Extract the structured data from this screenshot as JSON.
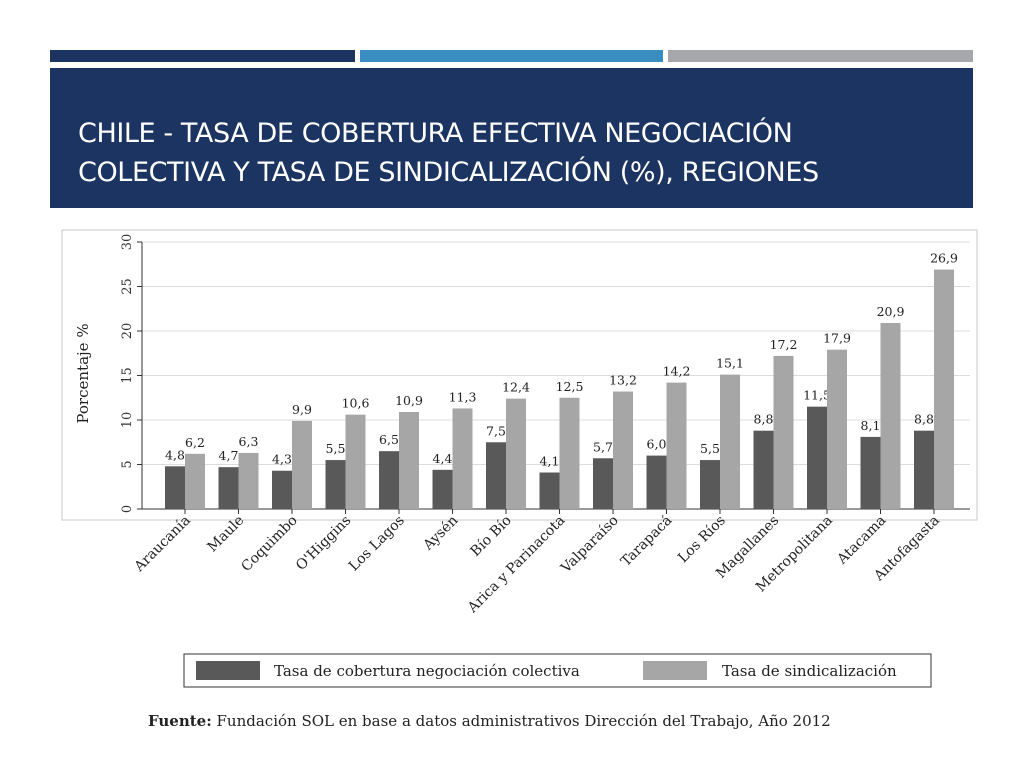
{
  "slide": {
    "title_line1": "CHILE - TASA DE COBERTURA EFECTIVA NEGOCIACIÓN",
    "title_line2": "COLECTIVA Y TASA DE SINDICALIZACIÓN (%), REGIONES",
    "source_label": "Fuente:",
    "source_text": " Fundación SOL en base a datos administrativos Dirección del Trabajo, Año 2012"
  },
  "colors": {
    "title_bg": "#1c3461",
    "accent_1": "#1c3461",
    "accent_2": "#3a8dc0",
    "accent_3": "#a5a7aa",
    "series_dark": "#595959",
    "series_light": "#a6a6a6"
  },
  "chart_data": {
    "type": "bar",
    "title": "",
    "xlabel": "",
    "ylabel": "Porcentaje %",
    "ylim": [
      0,
      30
    ],
    "yticks": [
      0,
      5,
      10,
      15,
      20,
      25,
      30
    ],
    "grid": true,
    "legend_position": "bottom",
    "categories": [
      "Araucanía",
      "Maule",
      "Coquimbo",
      "O'Higgins",
      "Los Lagos",
      "Aysén",
      "Bío Bío",
      "Arica y Parinacota",
      "Valparaíso",
      "Tarapacá",
      "Los Ríos",
      "Magallanes",
      "Metropolitana",
      "Atacama",
      "Antofagasta"
    ],
    "series": [
      {
        "name": "Tasa de cobertura negociación colectiva",
        "values": [
          4.8,
          4.7,
          4.3,
          5.5,
          6.5,
          4.4,
          7.5,
          4.1,
          5.7,
          6.0,
          5.5,
          8.8,
          11.5,
          8.1,
          8.8
        ],
        "labels": [
          "4,8",
          "4,7",
          "4,3",
          "5,5",
          "6,5",
          "4,4",
          "7,5",
          "4,1",
          "5,7",
          "6,0",
          "5,5",
          "8,8",
          "11,5",
          "8,1",
          "8,8"
        ]
      },
      {
        "name": "Tasa de sindicalización",
        "values": [
          6.2,
          6.3,
          9.9,
          10.6,
          10.9,
          11.3,
          12.4,
          12.5,
          13.2,
          14.2,
          15.1,
          17.2,
          17.9,
          20.9,
          26.9
        ],
        "labels": [
          "6,2",
          "6,3",
          "9,9",
          "10,6",
          "10,9",
          "11,3",
          "12,4",
          "12,5",
          "13,2",
          "14,2",
          "15,1",
          "17,2",
          "17,9",
          "20,9",
          "26,9"
        ]
      }
    ]
  }
}
